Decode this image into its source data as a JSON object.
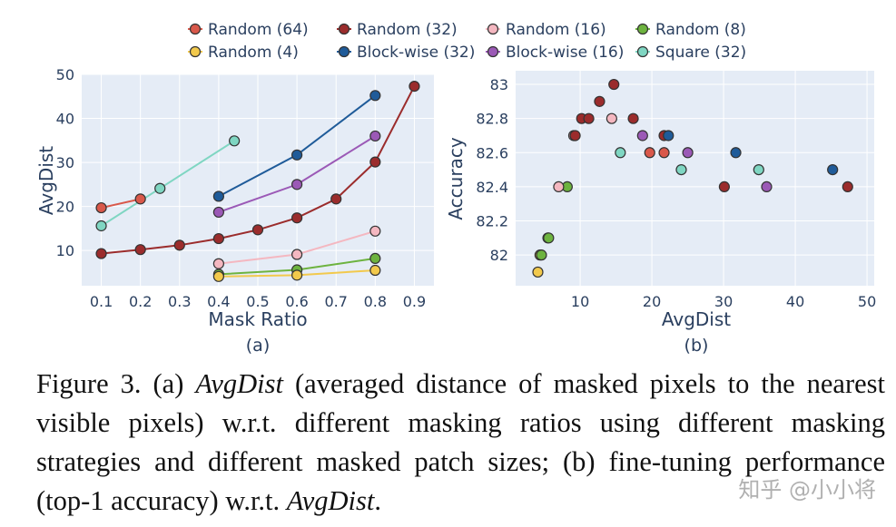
{
  "legend": [
    {
      "key": "random64",
      "label": "Random (64)",
      "color": "#d9584a"
    },
    {
      "key": "random32",
      "label": "Random (32)",
      "color": "#9b2c2c"
    },
    {
      "key": "random16",
      "label": "Random (16)",
      "color": "#f4b7c0"
    },
    {
      "key": "random8",
      "label": "Random (8)",
      "color": "#6db33f"
    },
    {
      "key": "random4",
      "label": "Random (4)",
      "color": "#f2c94c"
    },
    {
      "key": "block32",
      "label": "Block-wise (32)",
      "color": "#1f5b99"
    },
    {
      "key": "block16",
      "label": "Block-wise (16)",
      "color": "#9b59b6"
    },
    {
      "key": "square32",
      "label": "Square (32)",
      "color": "#7fd6c2"
    }
  ],
  "chart_data": [
    {
      "type": "line",
      "panel_label": "(a)",
      "xlabel": "Mask Ratio",
      "ylabel": "AvgDist",
      "xlim": [
        0.05,
        0.95
      ],
      "ylim": [
        2,
        50
      ],
      "xticks": [
        "0.1",
        "0.2",
        "0.3",
        "0.4",
        "0.5",
        "0.6",
        "0.7",
        "0.8",
        "0.9"
      ],
      "yticks": [
        "10",
        "20",
        "30",
        "40",
        "50"
      ],
      "series": [
        {
          "key": "random64",
          "x": [
            0.1,
            0.2
          ],
          "y": [
            19.7,
            21.7
          ]
        },
        {
          "key": "random32",
          "x": [
            0.1,
            0.2,
            0.3,
            0.4,
            0.5,
            0.6,
            0.7,
            0.8,
            0.9
          ],
          "y": [
            9.3,
            10.2,
            11.2,
            12.7,
            14.7,
            17.4,
            21.7,
            30.1,
            47.3
          ]
        },
        {
          "key": "random16",
          "x": [
            0.4,
            0.6,
            0.8
          ],
          "y": [
            7.0,
            9.1,
            14.4
          ]
        },
        {
          "key": "random8",
          "x": [
            0.4,
            0.6,
            0.8
          ],
          "y": [
            4.6,
            5.6,
            8.2
          ]
        },
        {
          "key": "random4",
          "x": [
            0.4,
            0.6,
            0.8
          ],
          "y": [
            4.1,
            4.4,
            5.5
          ]
        },
        {
          "key": "block32",
          "x": [
            0.4,
            0.6,
            0.8
          ],
          "y": [
            22.3,
            31.7,
            45.2
          ]
        },
        {
          "key": "block16",
          "x": [
            0.4,
            0.6,
            0.8
          ],
          "y": [
            18.7,
            25.0,
            36.0
          ]
        },
        {
          "key": "square32",
          "x": [
            0.1,
            0.25,
            0.44
          ],
          "y": [
            15.6,
            24.1,
            34.9
          ]
        }
      ]
    },
    {
      "type": "scatter",
      "panel_label": "(b)",
      "xlabel": "AvgDist",
      "ylabel": "Accuracy",
      "xlim": [
        1,
        51
      ],
      "ylim": [
        81.82,
        83.08
      ],
      "xticks": [
        "10",
        "20",
        "30",
        "40",
        "50"
      ],
      "yticks": [
        "82",
        "82.2",
        "82.4",
        "82.6",
        "82.8",
        "83"
      ],
      "series": [
        {
          "key": "random4",
          "x": [
            4.1,
            4.4,
            5.5
          ],
          "y": [
            81.9,
            82.0,
            82.1
          ]
        },
        {
          "key": "random8",
          "x": [
            4.6,
            5.6,
            8.2
          ],
          "y": [
            82.0,
            82.1,
            82.4
          ]
        },
        {
          "key": "random16",
          "x": [
            7.0,
            9.1,
            14.4
          ],
          "y": [
            82.4,
            82.7,
            82.8
          ]
        },
        {
          "key": "random32",
          "x": [
            9.3,
            10.2,
            11.2,
            12.7,
            14.7,
            17.4,
            21.7,
            30.1,
            47.3
          ],
          "y": [
            82.7,
            82.8,
            82.8,
            82.9,
            83.0,
            82.8,
            82.7,
            82.4,
            82.4
          ]
        },
        {
          "key": "random64",
          "x": [
            19.7,
            21.7
          ],
          "y": [
            82.6,
            82.6
          ]
        },
        {
          "key": "block32",
          "x": [
            22.3,
            31.7,
            45.2
          ],
          "y": [
            82.7,
            82.6,
            82.5
          ]
        },
        {
          "key": "block16",
          "x": [
            18.7,
            25.0,
            36.0
          ],
          "y": [
            82.7,
            82.6,
            82.4
          ]
        },
        {
          "key": "square32",
          "x": [
            15.6,
            24.1,
            34.9
          ],
          "y": [
            82.6,
            82.5,
            82.5
          ]
        }
      ]
    }
  ],
  "caption": {
    "prefix": "Figure 3.  (a) ",
    "term1": "AvgDist",
    "middle": " (averaged distance of masked pixels to the nearest visible pixels) w.r.t. different masking ratios using different masking strategies and different masked patch sizes; (b) fine-tuning performance (top-1 accuracy) w.r.t. ",
    "term2": "AvgDist",
    "suffix": "."
  },
  "watermark": "知乎 @小小将"
}
